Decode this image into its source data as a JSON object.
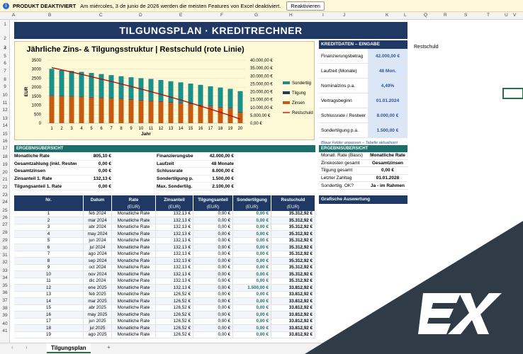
{
  "notice": {
    "status": "PRODUKT DEAKTIVIERT",
    "message": "Am miércoles, 3 de junio de 2026 werden die meisten Features von Excel deaktiviert.",
    "button": "Reaktivieren"
  },
  "columns": [
    "A",
    "B",
    "C",
    "D",
    "E",
    "F",
    "G",
    "H",
    "I",
    "J",
    "K",
    "L",
    "Q",
    "R",
    "S",
    "T",
    "U",
    "V"
  ],
  "rows": [
    "1",
    "2",
    "3",
    "4",
    "5",
    "6",
    "7",
    "8",
    "9",
    "10",
    "11",
    "12",
    "13",
    "14",
    "15",
    "16",
    "17",
    "18",
    "19",
    "20",
    "21",
    "22",
    "23",
    "24",
    "25",
    "26",
    "27",
    "28",
    "29",
    "30",
    "31",
    "32",
    "33",
    "34",
    "35",
    "36",
    "37",
    "38",
    "39",
    "40",
    "41"
  ],
  "title": "TILGUNGSPLAN  ·  KREDITRECHNER",
  "chart_data": {
    "type": "bar",
    "title": "Jährliche Zins- & Tilgungsstruktur  |  Restschuld (rote Linie)",
    "xlabel": "Jahr",
    "ylabel": "EUR",
    "categories": [
      "1",
      "2",
      "3",
      "4",
      "5",
      "6",
      "7",
      "8",
      "9",
      "10",
      "11",
      "12",
      "13",
      "14",
      "15",
      "16",
      "17",
      "18",
      "19",
      "20"
    ],
    "ylim": [
      0,
      3500
    ],
    "y_ticks": [
      "0",
      "500",
      "1000",
      "1500",
      "2000",
      "2500",
      "3000",
      "3500"
    ],
    "y2lim": [
      0,
      40000
    ],
    "y2_ticks": [
      "0,00 €",
      "5.000,00 €",
      "10.000,00 €",
      "15.000,00 €",
      "20.000,00 €",
      "25.000,00 €",
      "30.000,00 €",
      "35.000,00 €",
      "40.000,00 €"
    ],
    "stacked": true,
    "series": [
      {
        "name": "Zinsen",
        "color": "#c55a11",
        "values": [
          1520,
          1500,
          1480,
          1460,
          1430,
          1400,
          1370,
          1340,
          1310,
          1270,
          1240,
          1200,
          1150,
          1100,
          1050,
          1000,
          940,
          880,
          820,
          600
        ]
      },
      {
        "name": "Tilgung",
        "color": "#1f3864",
        "values": [
          30,
          30,
          30,
          30,
          30,
          30,
          30,
          30,
          30,
          30,
          30,
          30,
          30,
          30,
          30,
          30,
          30,
          30,
          30,
          30
        ]
      },
      {
        "name": "Sondertilg",
        "color": "#1b8f8a",
        "values": [
          1470,
          1420,
          1390,
          1360,
          1330,
          1300,
          1270,
          1240,
          1210,
          1200,
          1190,
          1170,
          1150,
          1140,
          1120,
          1100,
          1080,
          1070,
          1060,
          1150
        ]
      },
      {
        "name": "Restschuld",
        "color": "#c00000",
        "type": "line",
        "axis": "y2",
        "values": [
          35300,
          33900,
          32500,
          31000,
          29500,
          28000,
          26500,
          24900,
          23300,
          21700,
          20000,
          18300,
          16500,
          14700,
          12800,
          10900,
          8900,
          6900,
          4800,
          2600
        ]
      }
    ]
  },
  "side": {
    "header": "KREDITDATEN – EINGABE",
    "items": [
      {
        "label": "Finanzierungsbetrag",
        "value": "42.000,00 €"
      },
      {
        "label": "Laufzeit (Monate)",
        "value": "48 Mon."
      },
      {
        "label": "Nominalzins p.a.",
        "value": "4,49%"
      },
      {
        "label": "Vertragsbeginn",
        "value": "01.01.2024"
      },
      {
        "label": "Schlussrate / Restwer",
        "value": "8.000,00 €"
      },
      {
        "label": "Sondertilgung p.a.",
        "value": "1.500,00 €"
      }
    ],
    "note": "Blaue Felder anpassen – Tabelle aktualisiert sich automatisch",
    "restlabel": "Restschuld"
  },
  "summary": {
    "header": "ERGEBNISÜBERSICHT",
    "left": [
      {
        "label": "Monatliche Rate",
        "value": "805,10 €"
      },
      {
        "label": "Gesamtzahlung (inkl. Restwer",
        "value": "0,00 €"
      },
      {
        "label": "Gesamtzinsen",
        "value": "0,00 €"
      },
      {
        "label": "Zinsanteil 1. Rate",
        "value": "132,13 €"
      },
      {
        "label": "Tilgungsanteil 1. Rate",
        "value": "0,00 €"
      }
    ],
    "mid": [
      {
        "label": "Finanzierungsbe",
        "value": "42.000,00 €"
      },
      {
        "label": "Laufzeit",
        "value": "48 Monate"
      },
      {
        "label": "Schlussrate",
        "value": "8.000,00 €"
      },
      {
        "label": "Sondertilgung p.",
        "value": "1.500,00 €"
      },
      {
        "label": "Max. Sondertilg.",
        "value": "2.100,00 €"
      }
    ]
  },
  "erg": {
    "header": "ERGEBNISÜBERSICHT",
    "items": [
      {
        "label": "Monatl. Rate (Basis)",
        "value": "Monatliche Rate"
      },
      {
        "label": "Zinskosten gesamt",
        "value": "Gesamtzinsen"
      },
      {
        "label": "Tilgung gesamt",
        "value": "0,00 €"
      },
      {
        "label": "Letzter Zahltag",
        "value": "01.01.2028"
      },
      {
        "label": "Sondertilg. OK?",
        "value": "Ja - im Rahmen"
      }
    ],
    "graf": "Grafische Auswertung"
  },
  "table": {
    "headers": [
      "Nr.",
      "Datum",
      "Rate",
      "Zinsanteil",
      "Tilgungsanteil",
      "Sondertilgung",
      "Restschuld"
    ],
    "units": [
      "",
      "",
      "(EUR)",
      "(EUR)",
      "(EUR)",
      "(EUR)",
      "(EUR)"
    ],
    "rows": [
      [
        "1",
        "feb 2024",
        "Monatliche Rate",
        "132,13 €",
        "0,00 €",
        "0,00 €",
        "35.312,92 €"
      ],
      [
        "2",
        "mar 2024",
        "Monatliche Rate",
        "132,13 €",
        "0,00 €",
        "0,00 €",
        "35.312,92 €"
      ],
      [
        "3",
        "abr 2024",
        "Monatliche Rate",
        "132,13 €",
        "0,00 €",
        "0,00 €",
        "35.312,92 €"
      ],
      [
        "4",
        "may 2024",
        "Monatliche Rate",
        "132,13 €",
        "0,00 €",
        "0,00 €",
        "35.312,92 €"
      ],
      [
        "5",
        "jun 2024",
        "Monatliche Rate",
        "132,13 €",
        "0,00 €",
        "0,00 €",
        "35.312,92 €"
      ],
      [
        "6",
        "jul 2024",
        "Monatliche Rate",
        "132,13 €",
        "0,00 €",
        "0,00 €",
        "35.312,92 €"
      ],
      [
        "7",
        "ago 2024",
        "Monatliche Rate",
        "132,13 €",
        "0,00 €",
        "0,00 €",
        "35.312,92 €"
      ],
      [
        "8",
        "sep 2024",
        "Monatliche Rate",
        "132,13 €",
        "0,00 €",
        "0,00 €",
        "35.312,92 €"
      ],
      [
        "9",
        "oct 2024",
        "Monatliche Rate",
        "132,13 €",
        "0,00 €",
        "0,00 €",
        "35.312,92 €"
      ],
      [
        "10",
        "nov 2024",
        "Monatliche Rate",
        "132,13 €",
        "0,00 €",
        "0,00 €",
        "35.312,92 €"
      ],
      [
        "11",
        "dic 2024",
        "Monatliche Rate",
        "132,13 €",
        "0,00 €",
        "0,00 €",
        "35.312,92 €"
      ],
      [
        "12",
        "ene 2025",
        "Monatliche Rate",
        "132,13 €",
        "0,00 €",
        "1.500,00 €",
        "33.812,92 €"
      ],
      [
        "13",
        "feb 2025",
        "Monatliche Rate",
        "126,52 €",
        "0,00 €",
        "0,00 €",
        "33.812,92 €"
      ],
      [
        "14",
        "mar 2025",
        "Monatliche Rate",
        "126,52 €",
        "0,00 €",
        "0,00 €",
        "33.812,92 €"
      ],
      [
        "15",
        "abr 2025",
        "Monatliche Rate",
        "126,52 €",
        "0,00 €",
        "0,00 €",
        "33.812,92 €"
      ],
      [
        "16",
        "may 2025",
        "Monatliche Rate",
        "126,52 €",
        "0,00 €",
        "0,00 €",
        "33.812,92 €"
      ],
      [
        "17",
        "jun 2025",
        "Monatliche Rate",
        "126,52 €",
        "0,00 €",
        "0,00 €",
        "33.812,92 €"
      ],
      [
        "18",
        "jul 2025",
        "Monatliche Rate",
        "126,52 €",
        "0,00 €",
        "0,00 €",
        "33.812,92 €"
      ],
      [
        "19",
        "ago 2025",
        "Monatliche Rate",
        "126,52 €",
        "0,00 €",
        "0,00 €",
        "33.812,92 €"
      ]
    ]
  },
  "sheet_tab": "Tilgungsplan",
  "add_sheet": "+"
}
